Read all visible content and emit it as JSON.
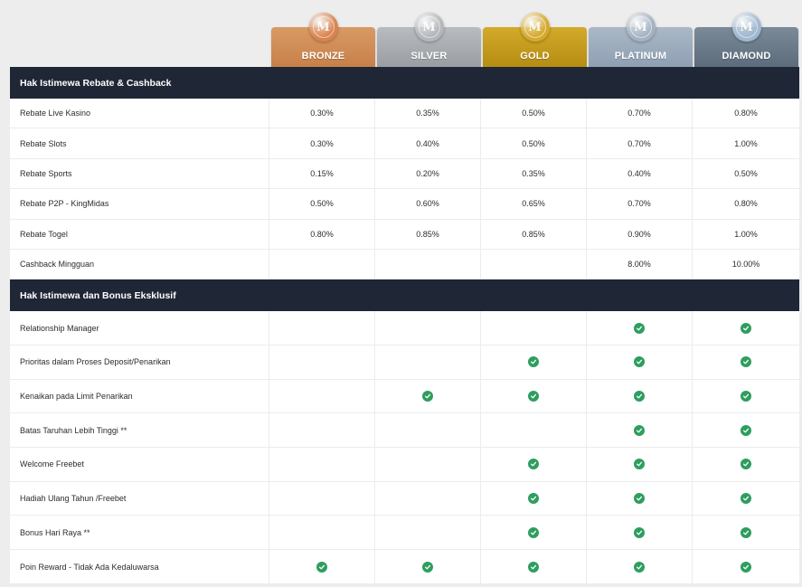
{
  "tiers": [
    {
      "name": "BRONZE",
      "color_from": "#c8804a",
      "color_to": "#d99a63",
      "medal": "#d9834e",
      "icon": "bronze-medal-icon"
    },
    {
      "name": "SILVER",
      "color_from": "#9a9ea3",
      "color_to": "#b8bcc0",
      "medal": "#b3b6ba",
      "icon": "silver-medal-icon"
    },
    {
      "name": "GOLD",
      "color_from": "#b58d12",
      "color_to": "#d4aa2a",
      "medal": "#d6a92d",
      "icon": "gold-medal-icon"
    },
    {
      "name": "PLATINUM",
      "color_from": "#8fa0b3",
      "color_to": "#aab8c6",
      "medal": "#a4b2c1",
      "icon": "platinum-medal-icon"
    },
    {
      "name": "DIAMOND",
      "color_from": "#5c6c7c",
      "color_to": "#7b8a98",
      "medal": "#9fb8d0",
      "icon": "diamond-medal-icon"
    }
  ],
  "sections": {
    "rebate": {
      "title": "Hak Istimewa Rebate & Cashback",
      "rows": [
        {
          "label": "Rebate Live Kasino",
          "values": [
            "0.30%",
            "0.35%",
            "0.50%",
            "0.70%",
            "0.80%"
          ]
        },
        {
          "label": "Rebate Slots",
          "values": [
            "0.30%",
            "0.40%",
            "0.50%",
            "0.70%",
            "1.00%"
          ]
        },
        {
          "label": "Rebate Sports",
          "values": [
            "0.15%",
            "0.20%",
            "0.35%",
            "0.40%",
            "0.50%"
          ]
        },
        {
          "label": "Rebate P2P - KingMidas",
          "values": [
            "0.50%",
            "0.60%",
            "0.65%",
            "0.70%",
            "0.80%"
          ]
        },
        {
          "label": "Rebate Togel",
          "values": [
            "0.80%",
            "0.85%",
            "0.85%",
            "0.90%",
            "1.00%"
          ]
        },
        {
          "label": "Cashback Mingguan",
          "values": [
            "",
            "",
            "",
            "8.00%",
            "10.00%"
          ]
        }
      ]
    },
    "bonus": {
      "title": "Hak Istimewa dan Bonus Eksklusif",
      "rows": [
        {
          "label": "Relationship Manager",
          "checks": [
            false,
            false,
            false,
            true,
            true
          ]
        },
        {
          "label": "Prioritas dalam Proses Deposit/Penarikan",
          "checks": [
            false,
            false,
            true,
            true,
            true
          ]
        },
        {
          "label": "Kenaikan pada Limit Penarikan",
          "checks": [
            false,
            true,
            true,
            true,
            true
          ]
        },
        {
          "label": "Batas Taruhan Lebih Tinggi **",
          "checks": [
            false,
            false,
            false,
            true,
            true
          ]
        },
        {
          "label": "Welcome Freebet",
          "checks": [
            false,
            false,
            true,
            true,
            true
          ]
        },
        {
          "label": "Hadiah Ulang Tahun /Freebet",
          "checks": [
            false,
            false,
            true,
            true,
            true
          ]
        },
        {
          "label": "Bonus Hari Raya **",
          "checks": [
            false,
            false,
            true,
            true,
            true
          ]
        },
        {
          "label": "Poin Reward - Tidak Ada Kedaluwarsa",
          "checks": [
            true,
            true,
            true,
            true,
            true
          ]
        }
      ]
    }
  },
  "check_icon": "check-circle-icon",
  "check_color": "#2e9e5f",
  "header_color": "#1f2635"
}
